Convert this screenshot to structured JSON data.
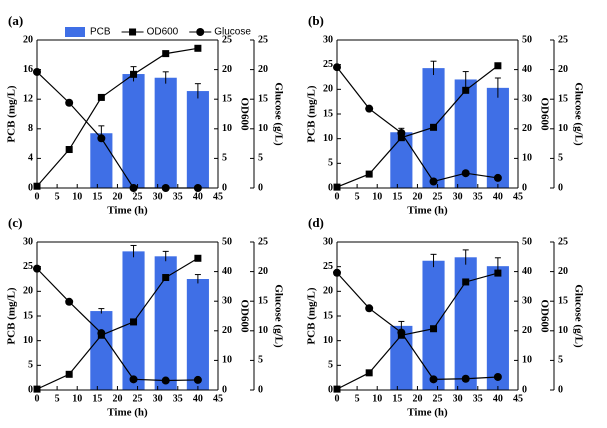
{
  "chart_data": [
    {
      "type": "bar_line",
      "title": "(a)",
      "x_label": "Time (h)",
      "y_label": "PCB (mg/L)",
      "y2_label": "OD600",
      "y3_label": "Glucose (g/L)",
      "xlim": [
        0,
        45
      ],
      "xticks": [
        0,
        5,
        10,
        15,
        20,
        25,
        30,
        35,
        40,
        45
      ],
      "ylim": [
        0,
        20
      ],
      "yticks": [
        0,
        4,
        8,
        12,
        16,
        20
      ],
      "y2lim": [
        0,
        25
      ],
      "y2ticks": [
        0,
        5,
        10,
        15,
        20,
        25
      ],
      "y3lim": [
        0,
        25
      ],
      "y3ticks": [
        0,
        5,
        10,
        15,
        20,
        25
      ],
      "legend": "top",
      "series": [
        {
          "name": "PCB",
          "type": "bar",
          "axis": "y",
          "color": "#3f6fe6",
          "x": [
            16,
            24,
            32,
            40
          ],
          "values": [
            7.4,
            15.4,
            14.9,
            13.1
          ],
          "errors": [
            1.0,
            1.0,
            0.8,
            1.0
          ]
        },
        {
          "name": "OD600",
          "type": "line",
          "marker": "square",
          "axis": "y2",
          "color": "#000000",
          "x": [
            0,
            8,
            16,
            24,
            32,
            40
          ],
          "values": [
            0.3,
            6.5,
            15.3,
            19.2,
            22.7,
            23.6
          ]
        },
        {
          "name": "Glucose",
          "type": "line",
          "marker": "circle",
          "axis": "y3",
          "color": "#000000",
          "x": [
            0,
            8,
            16,
            24,
            32,
            40
          ],
          "values": [
            19.6,
            14.4,
            8.4,
            0,
            0,
            0
          ]
        }
      ]
    },
    {
      "type": "bar_line",
      "title": "(b)",
      "x_label": "Time (h)",
      "y_label": "PCB (mg/L)",
      "y2_label": "OD600",
      "y3_label": "Glucose (g/L)",
      "xlim": [
        0,
        45
      ],
      "xticks": [
        0,
        5,
        10,
        15,
        20,
        25,
        30,
        35,
        40,
        45
      ],
      "ylim": [
        0,
        30
      ],
      "yticks": [
        0,
        5,
        10,
        15,
        20,
        25,
        30
      ],
      "y2lim": [
        0,
        50
      ],
      "y2ticks": [
        0,
        10,
        20,
        30,
        40,
        50
      ],
      "y3lim": [
        0,
        25
      ],
      "y3ticks": [
        0,
        5,
        10,
        15,
        20,
        25
      ],
      "series": [
        {
          "type": "bar",
          "axis": "y",
          "color": "#3f6fe6",
          "x": [
            16,
            24,
            32,
            40
          ],
          "values": [
            11.3,
            24.3,
            22.0,
            20.3
          ],
          "errors": [
            0.8,
            1.4,
            1.6,
            2.0
          ]
        },
        {
          "type": "line",
          "marker": "square",
          "axis": "y2",
          "color": "#000000",
          "x": [
            0,
            8,
            16,
            24,
            32,
            40
          ],
          "values": [
            0.3,
            4.7,
            17,
            20.5,
            33,
            41.3
          ]
        },
        {
          "type": "line",
          "marker": "circle",
          "axis": "y3",
          "color": "#000000",
          "x": [
            0,
            8,
            16,
            24,
            32,
            40
          ],
          "values": [
            20.4,
            13.4,
            9.3,
            1.1,
            2.5,
            1.7
          ]
        }
      ]
    },
    {
      "type": "bar_line",
      "title": "(c)",
      "x_label": "Time (h)",
      "y_label": "PCB (mg/L)",
      "y2_label": "OD600",
      "y3_label": "Glucose (g/L)",
      "xlim": [
        0,
        45
      ],
      "xticks": [
        0,
        5,
        10,
        15,
        20,
        25,
        30,
        35,
        40,
        45
      ],
      "ylim": [
        0,
        30
      ],
      "yticks": [
        0,
        5,
        10,
        15,
        20,
        25,
        30
      ],
      "y2lim": [
        0,
        50
      ],
      "y2ticks": [
        0,
        10,
        20,
        30,
        40,
        50
      ],
      "y3lim": [
        0,
        25
      ],
      "y3ticks": [
        0,
        5,
        10,
        15,
        20,
        25
      ],
      "series": [
        {
          "type": "bar",
          "axis": "y",
          "color": "#3f6fe6",
          "x": [
            16,
            24,
            32,
            40
          ],
          "values": [
            16.0,
            28.1,
            27.1,
            22.5
          ],
          "errors": [
            0.5,
            1.2,
            1.0,
            0.9
          ]
        },
        {
          "type": "line",
          "marker": "square",
          "axis": "y2",
          "color": "#000000",
          "x": [
            0,
            8,
            16,
            24,
            32,
            40
          ],
          "values": [
            0.3,
            5.3,
            18.5,
            23,
            38,
            44.5
          ]
        },
        {
          "type": "line",
          "marker": "circle",
          "axis": "y3",
          "color": "#000000",
          "x": [
            0,
            8,
            16,
            24,
            32,
            40
          ],
          "values": [
            20.5,
            14.9,
            9.6,
            1.8,
            1.6,
            1.7
          ]
        }
      ]
    },
    {
      "type": "bar_line",
      "title": "(d)",
      "x_label": "Time (h)",
      "y_label": "PCB (mg/L)",
      "y2_label": "OD600",
      "y3_label": "Glucose (g/L)",
      "xlim": [
        0,
        45
      ],
      "xticks": [
        0,
        5,
        10,
        15,
        20,
        25,
        30,
        35,
        40,
        45
      ],
      "ylim": [
        0,
        30
      ],
      "yticks": [
        0,
        5,
        10,
        15,
        20,
        25,
        30
      ],
      "y2lim": [
        0,
        50
      ],
      "y2ticks": [
        0,
        10,
        20,
        30,
        40,
        50
      ],
      "y3lim": [
        0,
        25
      ],
      "y3ticks": [
        0,
        5,
        10,
        15,
        20,
        25
      ],
      "series": [
        {
          "type": "bar",
          "axis": "y",
          "color": "#3f6fe6",
          "x": [
            16,
            24,
            32,
            40
          ],
          "values": [
            13.0,
            26.2,
            26.9,
            25.1
          ],
          "errors": [
            0.9,
            1.3,
            1.5,
            1.7
          ]
        },
        {
          "type": "line",
          "marker": "square",
          "axis": "y2",
          "color": "#000000",
          "x": [
            0,
            8,
            16,
            24,
            32,
            40
          ],
          "values": [
            0.3,
            5.8,
            18.5,
            20.7,
            36.5,
            39.5
          ]
        },
        {
          "type": "line",
          "marker": "circle",
          "axis": "y3",
          "color": "#000000",
          "x": [
            0,
            8,
            16,
            24,
            32,
            40
          ],
          "values": [
            19.8,
            13.8,
            9.7,
            1.8,
            1.9,
            2.2
          ]
        }
      ]
    }
  ]
}
